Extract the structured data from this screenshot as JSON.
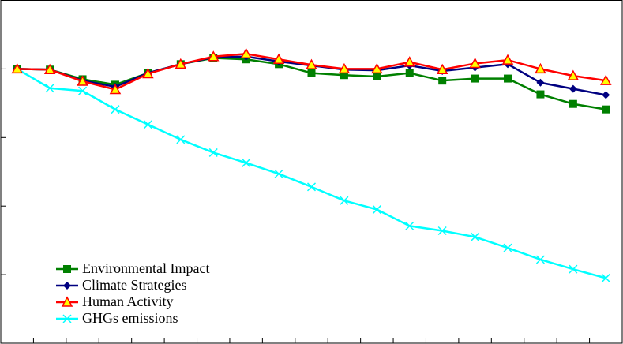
{
  "chart_data": {
    "type": "line",
    "title": "",
    "xlabel": "",
    "ylabel": "",
    "x": [
      1,
      2,
      3,
      4,
      5,
      6,
      7,
      8,
      9,
      10,
      11,
      12,
      13,
      14,
      15,
      16,
      17,
      18,
      19
    ],
    "xlim": [
      0.5,
      19.5
    ],
    "ylim": [
      60,
      110
    ],
    "yticks": [
      70,
      80,
      90,
      100
    ],
    "tick_labels_shown": false,
    "grid": false,
    "legend_position": "bottom-left",
    "series": [
      {
        "name": "Environmental Impact",
        "color": "#008000",
        "marker": "square",
        "values": [
          100,
          99.9,
          98.5,
          97.7,
          99.4,
          100.7,
          101.6,
          101.4,
          100.7,
          99.4,
          99.1,
          98.9,
          99.4,
          98.3,
          98.6,
          98.6,
          96.3,
          94.9,
          94.1
        ]
      },
      {
        "name": "Climate Strategies",
        "color": "#000080",
        "marker": "diamond",
        "values": [
          100,
          99.9,
          98.3,
          97.4,
          99.4,
          100.7,
          101.7,
          101.8,
          101.1,
          100.5,
          99.9,
          99.8,
          100.5,
          99.7,
          100.2,
          100.7,
          98.0,
          97.1,
          96.2
        ]
      },
      {
        "name": "Human Activity",
        "color": "#ff0000",
        "marker": "triangle",
        "marker_fill": "#ffff00",
        "values": [
          100,
          99.9,
          98.2,
          97.0,
          99.3,
          100.7,
          101.8,
          102.2,
          101.4,
          100.6,
          100.0,
          100.0,
          101.0,
          99.9,
          100.8,
          101.3,
          100.0,
          99.0,
          98.3
        ]
      },
      {
        "name": "GHGs emissions",
        "color": "#00ffff",
        "marker": "x",
        "values": [
          100,
          97.2,
          96.8,
          94.1,
          91.9,
          89.7,
          87.8,
          86.3,
          84.7,
          82.8,
          80.8,
          79.5,
          77.1,
          76.4,
          75.5,
          73.9,
          72.2,
          70.8,
          69.5
        ]
      }
    ]
  }
}
